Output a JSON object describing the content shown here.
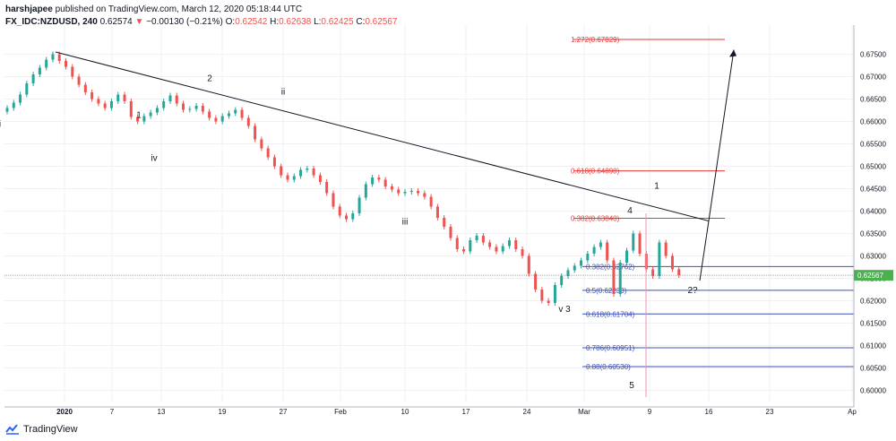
{
  "header": {
    "publisher_name": "harshjapee",
    "publisher_suffix": "published on TradingView.com, March 12, 2020 05:18:44 UTC",
    "symbol": "FX_IDC:NZDUSD, 240",
    "last": "0.62574",
    "change_arrow": "▼",
    "change": "−0.00130 (−0.21%)",
    "o_label": "O:",
    "o": "0.62542",
    "h_label": "H:",
    "h": "0.62638",
    "l_label": "L:",
    "l": "0.62425",
    "c_label": "C:",
    "c": "0.62567"
  },
  "footer": {
    "brand": "TradingView"
  },
  "chart_data": {
    "type": "candlestick",
    "symbol": "FX_IDC:NZDUSD",
    "timeframe": "240",
    "x_ticks": [
      "2020",
      "7",
      "13",
      "19",
      "27",
      "Feb",
      "10",
      "17",
      "24",
      "Mar",
      "9",
      "16",
      "23",
      "Ap"
    ],
    "y_range": [
      0.5975,
      0.6815
    ],
    "y_ticks": [
      "0.67500",
      "0.67000",
      "0.66500",
      "0.66000",
      "0.65500",
      "0.65000",
      "0.64500",
      "0.64000",
      "0.63500",
      "0.63000",
      "0.62500",
      "0.62000",
      "0.61500",
      "0.61000",
      "0.60500",
      "0.60000"
    ],
    "last_price": "0.62567",
    "price_path_closes": [
      [
        0.663,
        0.6642,
        0.666,
        0.6685,
        0.6705,
        0.672,
        0.6738,
        0.675
      ],
      [
        0.6735,
        0.6722,
        0.67,
        0.6682,
        0.6665,
        0.665,
        0.664,
        0.663
      ],
      [
        0.6645,
        0.666,
        0.6645,
        0.661,
        0.66,
        0.6612,
        0.662
      ],
      [
        0.663,
        0.6645,
        0.6658,
        0.664,
        0.6626,
        0.6628,
        0.6635
      ],
      [
        0.6622,
        0.6608,
        0.66,
        0.6612,
        0.6618,
        0.6626
      ],
      [
        0.6608,
        0.659,
        0.656,
        0.654,
        0.652,
        0.65
      ],
      [
        0.648,
        0.647,
        0.6478,
        0.6492,
        0.6495,
        0.648
      ],
      [
        0.6465,
        0.644,
        0.641,
        0.639,
        0.6382,
        0.6395
      ],
      [
        0.643,
        0.646,
        0.6475,
        0.647,
        0.6455
      ],
      [
        0.6448,
        0.644,
        0.6443,
        0.6445,
        0.644,
        0.6432
      ],
      [
        0.641,
        0.6385,
        0.6365,
        0.634,
        0.6315,
        0.631
      ],
      [
        0.6335,
        0.6345,
        0.633,
        0.632,
        0.631,
        0.6322,
        0.6335
      ],
      [
        0.6315,
        0.63,
        0.626,
        0.6225,
        0.62,
        0.6195
      ],
      [
        0.6235,
        0.6255,
        0.6268,
        0.6278,
        0.629,
        0.6305
      ],
      [
        0.632,
        0.633,
        0.629,
        0.6215
      ],
      [
        0.6285,
        0.6312,
        0.635,
        0.6305,
        0.627,
        0.6255,
        0.633,
        0.63,
        0.627,
        0.6257
      ]
    ],
    "wave_labels": [
      {
        "text": "1",
        "x": "13",
        "y": 0.6608
      },
      {
        "text": "2",
        "x": "19",
        "y": 0.669
      },
      {
        "text": "i",
        "x": "22",
        "y": 0.6588
      },
      {
        "text": "ii",
        "x": "27",
        "y": 0.666
      },
      {
        "text": "iii",
        "x": "10",
        "y": 0.637
      },
      {
        "text": "iv",
        "x": "13",
        "y": 0.6512
      },
      {
        "text": "v 3",
        "x": "Mar",
        "y": 0.6175
      },
      {
        "text": "4",
        "x": "9",
        "y": 0.6395
      },
      {
        "text": "1",
        "x": "9",
        "y": 0.645
      },
      {
        "text": "2?",
        "x": "16",
        "y": 0.6217
      },
      {
        "text": "5",
        "x": "9",
        "y": 0.6005
      }
    ],
    "trendline": {
      "from": {
        "x": "2020",
        "y": 0.6755
      },
      "to": {
        "x": "16",
        "y": 0.6378
      }
    },
    "projection_arrow": [
      {
        "x": "16",
        "y": 0.6245
      },
      {
        "x": "16",
        "y": 0.6378
      },
      {
        "x": "23",
        "y": 0.676
      }
    ],
    "fib_levels_upper": [
      {
        "label": "1.272(0.67829)",
        "value": 0.67829
      },
      {
        "label": "0.618(0.64898)",
        "value": 0.64898
      },
      {
        "label": "0.382(0.63840)",
        "value": 0.6384
      }
    ],
    "fib_levels_lower": [
      {
        "label": "0.382(0.62762)",
        "value": 0.62762
      },
      {
        "label": "0.5(0.62233)",
        "value": 0.62233
      },
      {
        "label": "0.618(0.61704)",
        "value": 0.61704
      },
      {
        "label": "0.786(0.60951)",
        "value": 0.60951
      },
      {
        "label": "0.88(0.60530)",
        "value": 0.6053
      }
    ],
    "colors": {
      "up": "#26a69a",
      "down": "#ef5350",
      "last_price_line": "#4caf50",
      "fib_upper": "#e53935",
      "fib_lower": "#3f51b5",
      "trendline": "#131722",
      "grid": "#eef0f3"
    }
  }
}
